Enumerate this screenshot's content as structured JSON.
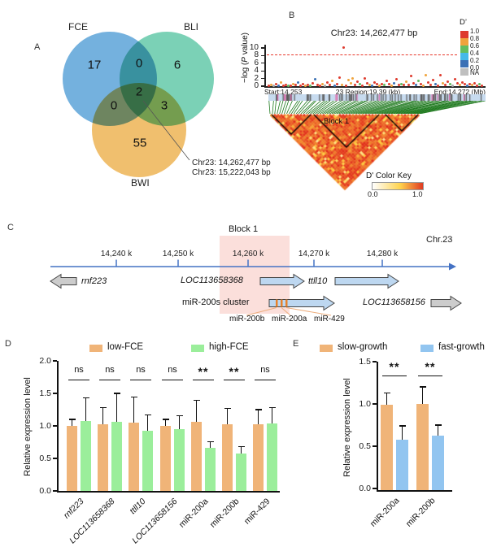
{
  "panel_labels": {
    "a": "A",
    "b": "B",
    "c": "C",
    "d": "D",
    "e": "E"
  },
  "chart_data": [
    {
      "type": "venn",
      "sets": [
        "FCE",
        "BLI",
        "BWI"
      ],
      "counts": {
        "fce_only": 17,
        "bli_only": 6,
        "bwi_only": 55,
        "fce_bli": 0,
        "fce_bwi": 0,
        "bli_bwi": 3,
        "all": 2
      },
      "annotations": [
        "Chr23: 14,262,477 bp",
        "Chr23: 15,222,043 bp"
      ],
      "colors": {
        "fce": "#68AADB",
        "bli": "#70CDB0",
        "bwi": "#EFBA62"
      }
    },
    {
      "type": "scatter",
      "name": "regional-association-plot",
      "title": "Chr23: 14,262,477 bp",
      "ylabel_pre": "−log (",
      "ylabel_italic": "P",
      "ylabel_post": " value)",
      "ylim": [
        0,
        10
      ],
      "yticks": [
        0,
        2,
        4,
        6,
        8,
        10
      ],
      "threshold_line": 8,
      "threshold_color": "#E8362B",
      "x_axis_text": {
        "start": "Start:14.253",
        "region": "23 Region:19.39 (kb)",
        "end": "End:14.272 (Mb)"
      },
      "legend": {
        "title": "D’",
        "labels": [
          "1.0",
          "0.8",
          "0.6",
          "0.4",
          "0.2",
          "0.0"
        ],
        "na_label": "NA",
        "colors": [
          "#DE3B2E",
          "#F0A33C",
          "#63BD5F",
          "#44B9E8",
          "#3B70B5"
        ],
        "na_color": "#BFBFBF"
      },
      "top_snp": {
        "label": "Chr23: 14,262,477 bp",
        "neglogp": 10.2
      },
      "point_colors": {
        "r": "#DE3B2E",
        "o": "#F0A33C",
        "g": "#63BD5F",
        "b": "#3B70B5",
        "c": "#44B9E8",
        "n": "#AAAAAA"
      },
      "points": [
        [
          2,
          0.1,
          "r"
        ],
        [
          5,
          0.3,
          "o"
        ],
        [
          8,
          0.1,
          "n"
        ],
        [
          11,
          0.5,
          "r"
        ],
        [
          14,
          0.2,
          "b"
        ],
        [
          17,
          0.9,
          "o"
        ],
        [
          20,
          0.1,
          "r"
        ],
        [
          23,
          0.4,
          "r"
        ],
        [
          26,
          0.2,
          "g"
        ],
        [
          29,
          0.1,
          "r"
        ],
        [
          32,
          0.6,
          "o"
        ],
        [
          35,
          0.3,
          "r"
        ],
        [
          38,
          1.0,
          "b"
        ],
        [
          41,
          0.2,
          "r"
        ],
        [
          44,
          0.5,
          "r"
        ],
        [
          47,
          0.1,
          "o"
        ],
        [
          50,
          0.3,
          "r"
        ],
        [
          53,
          0.15,
          "g"
        ],
        [
          56,
          0.7,
          "r"
        ],
        [
          59,
          1.8,
          "b"
        ],
        [
          62,
          0.3,
          "r"
        ],
        [
          65,
          0.1,
          "r"
        ],
        [
          68,
          0.5,
          "o"
        ],
        [
          71,
          0.2,
          "n"
        ],
        [
          74,
          0.9,
          "r"
        ],
        [
          77,
          0.35,
          "r"
        ],
        [
          80,
          1.3,
          "o"
        ],
        [
          83,
          0.15,
          "b"
        ],
        [
          86,
          0.6,
          "r"
        ],
        [
          89,
          2.2,
          "r"
        ],
        [
          92,
          0.4,
          "o"
        ],
        [
          94,
          10.2,
          "r"
        ],
        [
          97,
          0.2,
          "r"
        ],
        [
          100,
          1.5,
          "o"
        ],
        [
          103,
          0.8,
          "o"
        ],
        [
          105,
          2.0,
          "o"
        ],
        [
          108,
          0.3,
          "r"
        ],
        [
          111,
          1.2,
          "r"
        ],
        [
          114,
          0.5,
          "g"
        ],
        [
          117,
          0.2,
          "r"
        ],
        [
          120,
          2.1,
          "r"
        ],
        [
          123,
          0.8,
          "r"
        ],
        [
          126,
          0.3,
          "o"
        ],
        [
          129,
          0.15,
          "b"
        ],
        [
          132,
          1.0,
          "r"
        ],
        [
          135,
          0.45,
          "r"
        ],
        [
          138,
          0.2,
          "o"
        ],
        [
          141,
          0.6,
          "r"
        ],
        [
          144,
          0.25,
          "g"
        ],
        [
          147,
          1.3,
          "r"
        ],
        [
          150,
          0.5,
          "r"
        ],
        [
          153,
          0.2,
          "o"
        ],
        [
          156,
          0.8,
          "b"
        ],
        [
          159,
          1.9,
          "r"
        ],
        [
          162,
          0.3,
          "r"
        ],
        [
          165,
          0.6,
          "g"
        ],
        [
          168,
          0.25,
          "r"
        ],
        [
          171,
          1.1,
          "o"
        ],
        [
          174,
          0.4,
          "r"
        ],
        [
          177,
          2.6,
          "r"
        ],
        [
          180,
          0.7,
          "r"
        ],
        [
          183,
          0.3,
          "b"
        ],
        [
          186,
          1.4,
          "g"
        ],
        [
          189,
          0.5,
          "r"
        ],
        [
          192,
          0.2,
          "o"
        ],
        [
          195,
          2.8,
          "o"
        ],
        [
          198,
          0.9,
          "r"
        ],
        [
          201,
          0.35,
          "r"
        ],
        [
          204,
          1.6,
          "r"
        ],
        [
          207,
          0.5,
          "b"
        ],
        [
          210,
          0.2,
          "r"
        ],
        [
          213,
          2.9,
          "r"
        ],
        [
          216,
          0.7,
          "o"
        ],
        [
          219,
          0.3,
          "r"
        ],
        [
          222,
          1.2,
          "r"
        ],
        [
          225,
          0.5,
          "g"
        ],
        [
          228,
          0.2,
          "n"
        ],
        [
          231,
          1.8,
          "r"
        ],
        [
          234,
          0.8,
          "r"
        ],
        [
          237,
          0.3,
          "o"
        ],
        [
          240,
          1.0,
          "r"
        ],
        [
          243,
          0.45,
          "r"
        ],
        [
          246,
          0.15,
          "b"
        ],
        [
          249,
          0.6,
          "r"
        ],
        [
          252,
          0.3,
          "o"
        ],
        [
          255,
          0.8,
          "r"
        ],
        [
          258,
          0.2,
          "r"
        ],
        [
          261,
          0.5,
          "g"
        ],
        [
          264,
          0.15,
          "r"
        ]
      ]
    },
    {
      "type": "heatmap",
      "name": "ld-heatmap",
      "block_label": "Block 1",
      "description": "pairwise D' LD triangle, mostly high values (red)",
      "color_key": {
        "title": "D' Color Key",
        "min": "0.0",
        "max": "1.0"
      }
    },
    {
      "type": "bar",
      "name": "expression-by-FCE",
      "categories": [
        "rnf223",
        "LOC113658368",
        "ttll10",
        "LOC113658156",
        "miR-200a",
        "miR-200b",
        "miR-429"
      ],
      "italic": [
        true,
        true,
        true,
        true,
        false,
        false,
        false
      ],
      "series": [
        {
          "name": "low-FCE",
          "color": "#F0B478",
          "values": [
            1.0,
            1.02,
            1.05,
            1.0,
            1.06,
            1.02,
            1.02
          ],
          "errors": [
            0.1,
            0.26,
            0.39,
            0.1,
            0.33,
            0.25,
            0.23
          ]
        },
        {
          "name": "high-FCE",
          "color": "#9BEE9B",
          "values": [
            1.08,
            1.06,
            0.93,
            0.95,
            0.66,
            0.58,
            1.04
          ],
          "errors": [
            0.35,
            0.44,
            0.24,
            0.21,
            0.1,
            0.1,
            0.24
          ]
        }
      ],
      "significance": [
        "ns",
        "ns",
        "ns",
        "ns",
        "**",
        "**",
        "ns"
      ],
      "ylabel": "Relative expression level",
      "ylim": [
        0,
        2.0
      ],
      "yticks": [
        "2.0",
        "1.5",
        "1.0",
        "0.5",
        "0.0"
      ]
    },
    {
      "type": "bar",
      "name": "expression-by-growth",
      "categories": [
        "miR-200a",
        "miR-200b"
      ],
      "italic": [
        false,
        false
      ],
      "series": [
        {
          "name": "slow-growth",
          "color": "#F0B478",
          "values": [
            1.01,
            1.02
          ],
          "errors": [
            0.14,
            0.2
          ]
        },
        {
          "name": "fast-growth",
          "color": "#92C5F0",
          "values": [
            0.6,
            0.64
          ],
          "errors": [
            0.16,
            0.13
          ]
        }
      ],
      "significance": [
        "**",
        "**"
      ],
      "ylabel": "Relative expression level",
      "ylim": [
        0,
        1.5
      ],
      "yticks": [
        "1.5",
        "1.0",
        "0.5",
        "0.0"
      ]
    }
  ],
  "locus": {
    "chrom": "Chr.23",
    "block_label": "Block 1",
    "ticks": [
      "14,240 k",
      "14,250 k",
      "14,260 k",
      "14,270 k",
      "14,280 k"
    ],
    "genes": {
      "rnf223": "rnf223",
      "loc368": "LOC113658368",
      "ttll10": "ttll10",
      "cluster": "miR-200s cluster",
      "loc156": "LOC113658156"
    },
    "mirnas": [
      "miR-200b",
      "miR-200a",
      "miR-429"
    ]
  }
}
